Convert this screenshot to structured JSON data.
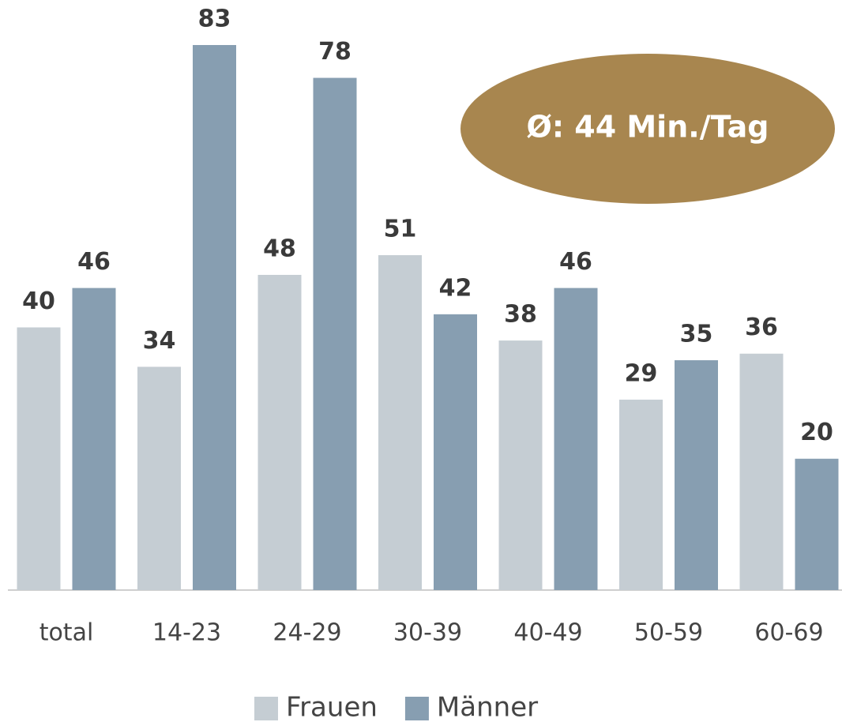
{
  "chart_data": {
    "type": "bar",
    "categories": [
      "total",
      "14-23",
      "24-29",
      "30-39",
      "40-49",
      "50-59",
      "60-69"
    ],
    "series": [
      {
        "name": "Frauen",
        "color": "#c5cdd3",
        "values": [
          40,
          34,
          48,
          51,
          38,
          29,
          36
        ]
      },
      {
        "name": "Männer",
        "color": "#879eb1",
        "values": [
          46,
          83,
          78,
          42,
          46,
          35,
          20
        ]
      }
    ],
    "annotation": "Ø: 44 Min./Tag",
    "annotation_color": "#a8864f",
    "legend": "bottom"
  }
}
